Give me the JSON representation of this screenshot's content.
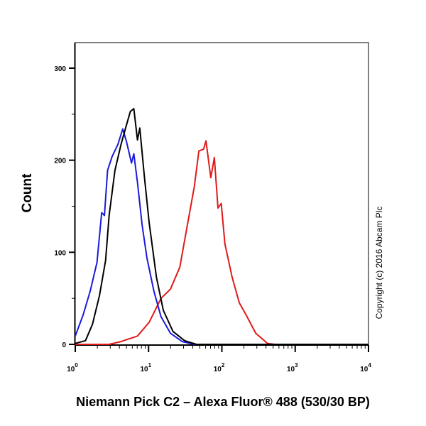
{
  "chart_data": {
    "type": "line",
    "title": "",
    "xlabel": "Niemann Pick C2 – Alexa Fluor® 488 (530/30 BP)",
    "ylabel": "Count",
    "x_scale": "log",
    "xlim": [
      1,
      10000
    ],
    "ylim": [
      0,
      328
    ],
    "x_tick_labels": [
      {
        "base": "10",
        "exp": "0",
        "value": 1
      },
      {
        "base": "10",
        "exp": "1",
        "value": 10
      },
      {
        "base": "10",
        "exp": "2",
        "value": 100
      },
      {
        "base": "10",
        "exp": "3",
        "value": 1000
      },
      {
        "base": "10",
        "exp": "4",
        "value": 10000
      }
    ],
    "y_ticks": [
      0,
      100,
      200,
      300
    ],
    "grid": false,
    "annotation": "Copyright (c) 2016 Abcam Plc",
    "series": [
      {
        "color": "#1a1adc",
        "x": [
          1,
          1.28,
          1.6,
          1.98,
          2.29,
          2.5,
          2.76,
          3.18,
          3.81,
          4.45,
          5.0,
          5.85,
          6.3,
          7.05,
          8.15,
          9.5,
          11.8,
          14.8,
          19.9,
          28.8,
          42,
          10000
        ],
        "y": [
          9,
          32,
          58,
          89,
          143,
          140,
          189,
          204,
          217,
          234,
          220,
          197,
          207,
          176,
          130,
          94,
          58,
          30,
          12,
          3,
          0,
          0
        ]
      },
      {
        "color": "#000000",
        "x": [
          1,
          1.38,
          1.72,
          2.14,
          2.59,
          2.9,
          3.48,
          4.2,
          4.86,
          5.65,
          6.3,
          7.05,
          7.6,
          8.8,
          10.2,
          12.8,
          15.9,
          21.5,
          31,
          45,
          10000
        ],
        "y": [
          1,
          4,
          22,
          53,
          91,
          140,
          189,
          217,
          235,
          253,
          256,
          222,
          235,
          181,
          132,
          73,
          37,
          14,
          4,
          0,
          0
        ]
      },
      {
        "color": "#e01a1a",
        "x": [
          1,
          2.9,
          4.2,
          7.05,
          10.2,
          14.8,
          19.9,
          26.7,
          33.4,
          42,
          48.6,
          56.2,
          60.7,
          70.6,
          79,
          88.5,
          98,
          110,
          138,
          173,
          214,
          290,
          420,
          525,
          10000
        ],
        "y": [
          0,
          0,
          3,
          9,
          24,
          50,
          60,
          84,
          127,
          171,
          210,
          212,
          221,
          181,
          203,
          148,
          153,
          109,
          73,
          45,
          32,
          12,
          1,
          0,
          0
        ]
      }
    ]
  }
}
